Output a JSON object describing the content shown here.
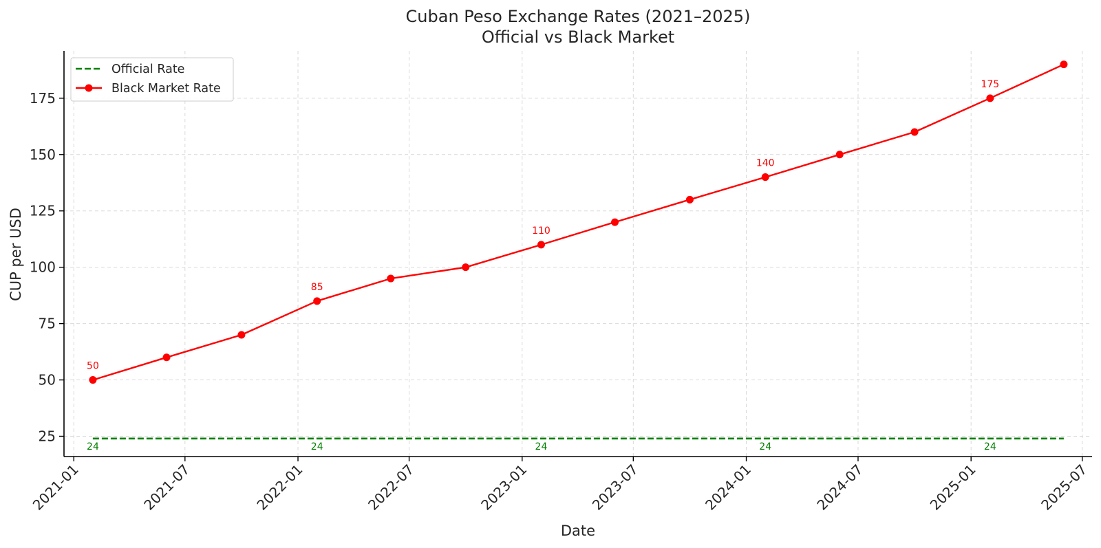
{
  "chart_data": {
    "type": "line",
    "title": "Cuban Peso Exchange Rates (2021–2025)",
    "subtitle": "Official vs Black Market",
    "xlabel": "Date",
    "ylabel": "CUP per USD",
    "xlim": [
      "2020-12-16",
      "2025-07-17"
    ],
    "ylim": [
      16,
      196
    ],
    "x_ticks": [
      "2021-01",
      "2021-07",
      "2022-01",
      "2022-07",
      "2023-01",
      "2023-07",
      "2024-01",
      "2024-07",
      "2025-01",
      "2025-07"
    ],
    "y_ticks": [
      25,
      50,
      75,
      100,
      125,
      150,
      175
    ],
    "grid": true,
    "legend_position": "upper-left",
    "series": [
      {
        "name": "Official Rate",
        "color": "#008000",
        "style": "dashed",
        "x": [
          "2021-02-01",
          "2021-06-01",
          "2021-10-01",
          "2022-02-01",
          "2022-06-01",
          "2022-10-01",
          "2023-02-01",
          "2023-06-01",
          "2023-10-01",
          "2024-02-01",
          "2024-06-01",
          "2024-10-01",
          "2025-02-01",
          "2025-06-01"
        ],
        "values": [
          24,
          24,
          24,
          24,
          24,
          24,
          24,
          24,
          24,
          24,
          24,
          24,
          24,
          24
        ],
        "annotations": [
          {
            "x": "2021-02-01",
            "text": "24"
          },
          {
            "x": "2022-02-01",
            "text": "24"
          },
          {
            "x": "2023-02-01",
            "text": "24"
          },
          {
            "x": "2024-02-01",
            "text": "24"
          },
          {
            "x": "2025-02-01",
            "text": "24"
          }
        ]
      },
      {
        "name": "Black Market Rate",
        "color": "#ff0000",
        "style": "solid-with-markers",
        "x": [
          "2021-02-01",
          "2021-06-01",
          "2021-10-01",
          "2022-02-01",
          "2022-06-01",
          "2022-10-01",
          "2023-02-01",
          "2023-06-01",
          "2023-10-01",
          "2024-02-01",
          "2024-06-01",
          "2024-10-01",
          "2025-02-01",
          "2025-06-01"
        ],
        "values": [
          50,
          60,
          70,
          85,
          95,
          100,
          110,
          120,
          130,
          140,
          150,
          160,
          175,
          190
        ],
        "annotations": [
          {
            "x": "2021-02-01",
            "text": "50"
          },
          {
            "x": "2022-02-01",
            "text": "85"
          },
          {
            "x": "2023-02-01",
            "text": "110"
          },
          {
            "x": "2024-02-01",
            "text": "140"
          },
          {
            "x": "2025-02-01",
            "text": "175"
          }
        ]
      }
    ]
  }
}
